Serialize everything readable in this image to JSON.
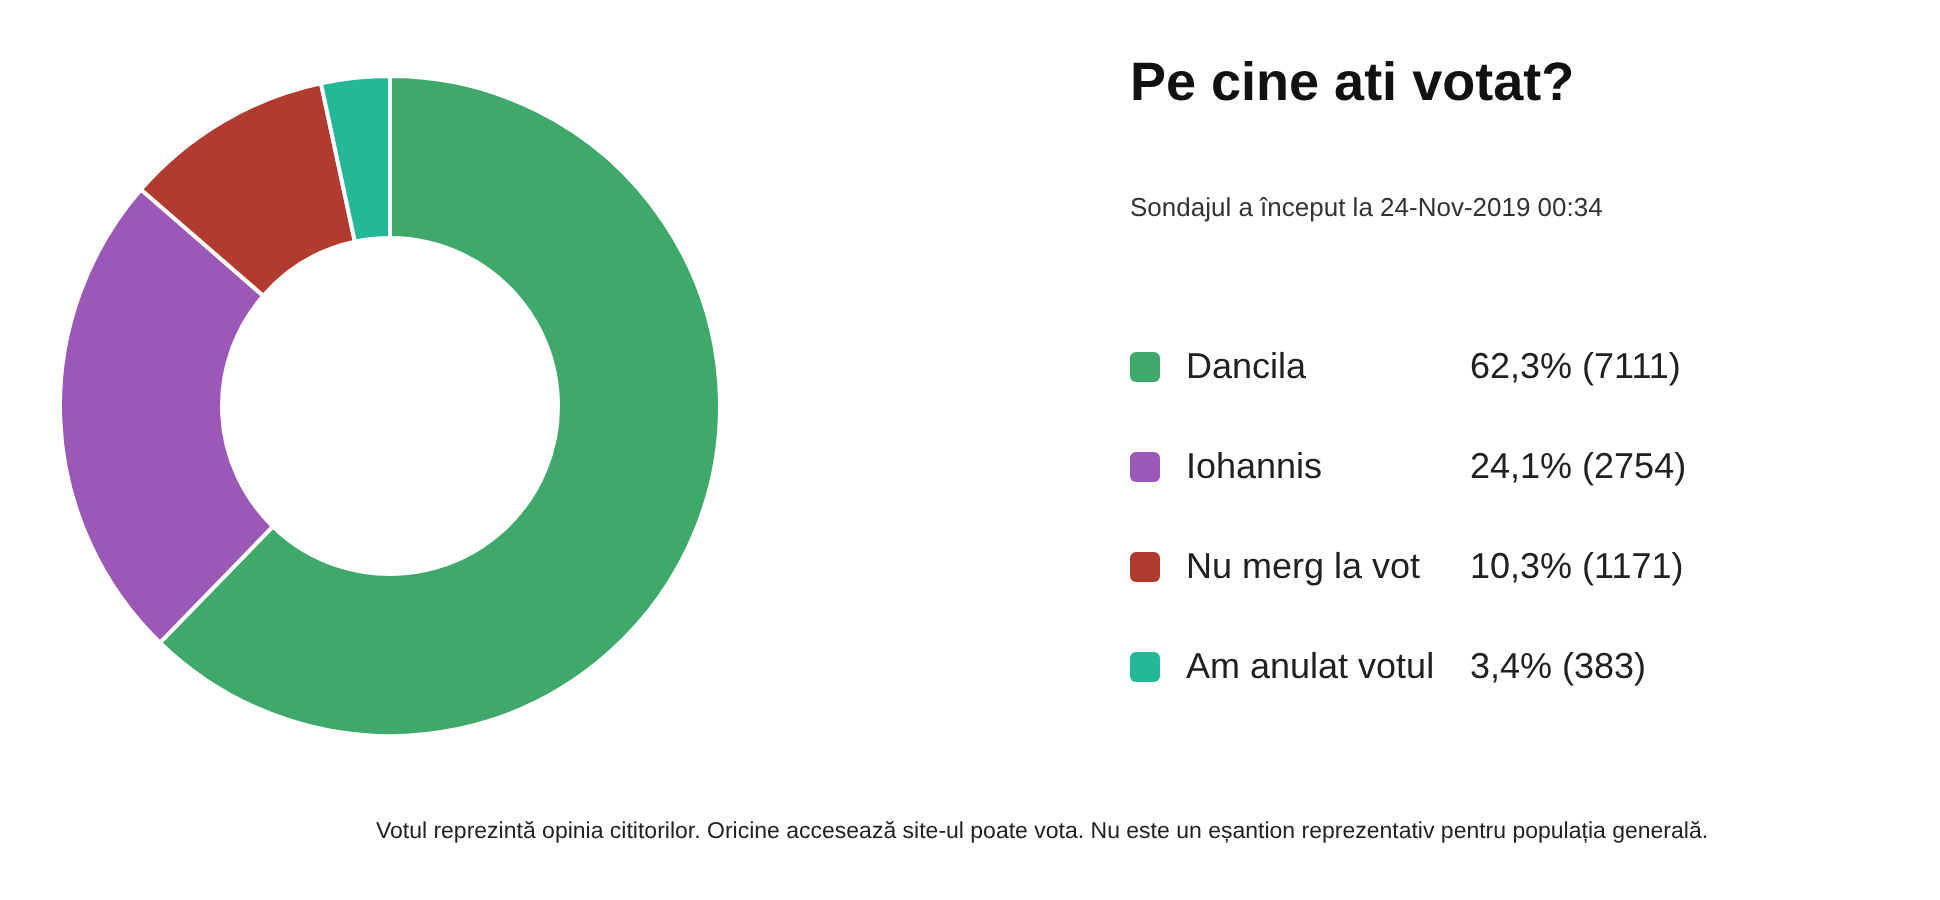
{
  "chart_data": {
    "type": "donut",
    "title": "Pe cine ati votat?",
    "subtitle": "Sondajul a început la 24-Nov-2019 00:34",
    "categories": [
      "Dancila",
      "Iohannis",
      "Nu merg la vot",
      "Am anulat votul"
    ],
    "values": [
      7111,
      2754,
      1171,
      383
    ],
    "value_labels": [
      "62,3% (7111)",
      "24,1% (2754)",
      "10,3% (1171)",
      "3,4% (383)"
    ],
    "colors": [
      "#3ea96b",
      "#9b58b6",
      "#b13b2e",
      "#24b898"
    ],
    "legend": "right",
    "annotations": [
      "Votul reprezintă opinia cititorilor. Oricine accesează site-ul poate vota. Nu este un eșantion reprezentativ pentru populația generală."
    ]
  }
}
